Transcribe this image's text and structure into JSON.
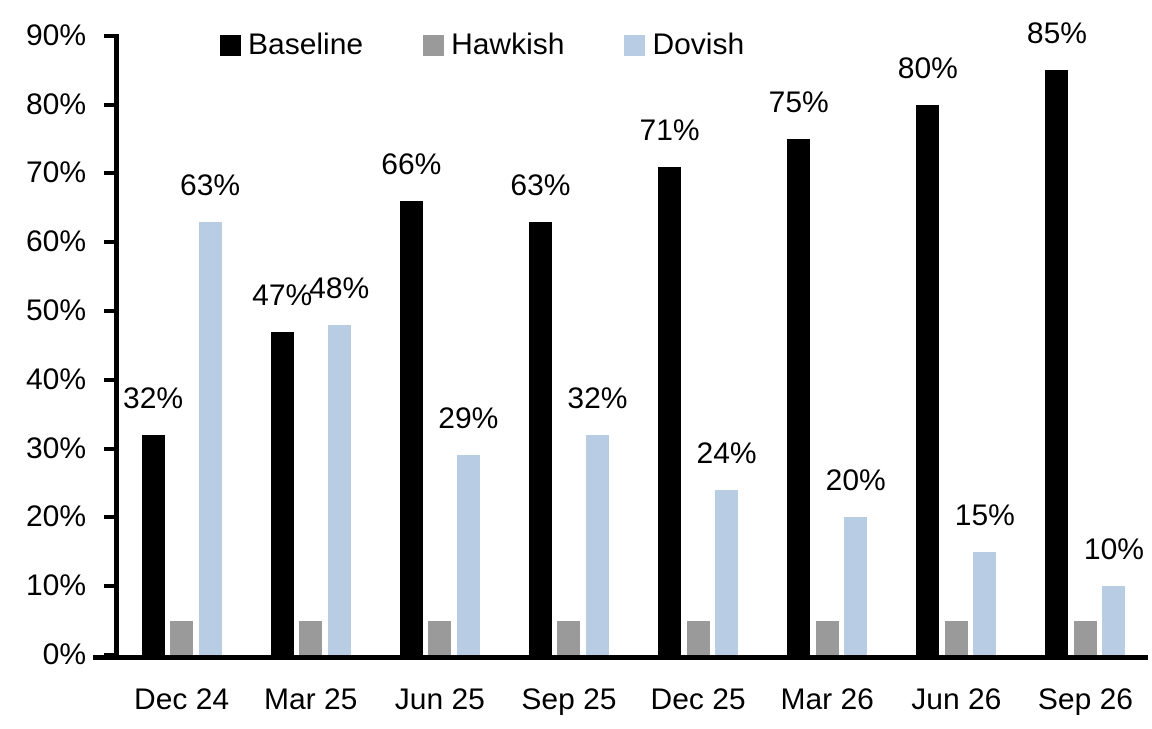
{
  "chart_data": {
    "type": "bar",
    "title": "",
    "categories": [
      "Dec 24",
      "Mar 25",
      "Jun 25",
      "Sep 25",
      "Dec 25",
      "Mar 26",
      "Jun 26",
      "Sep 26"
    ],
    "series": [
      {
        "name": "Baseline",
        "color": "#000000",
        "values": [
          32,
          47,
          66,
          63,
          71,
          75,
          80,
          85
        ],
        "data_labels": [
          "32%",
          "47%",
          "66%",
          "63%",
          "71%",
          "75%",
          "80%",
          "85%"
        ],
        "show_data_labels": true
      },
      {
        "name": "Hawkish",
        "color": "#9a9a9a",
        "values": [
          5,
          5,
          5,
          5,
          5,
          5,
          5,
          5
        ],
        "data_labels": null,
        "show_data_labels": false
      },
      {
        "name": "Dovish",
        "color": "#b8cce4",
        "values": [
          63,
          48,
          29,
          32,
          24,
          20,
          15,
          10
        ],
        "data_labels": [
          "63%",
          "48%",
          "29%",
          "32%",
          "24%",
          "20%",
          "15%",
          "10%"
        ],
        "show_data_labels": true
      }
    ],
    "y_axis": {
      "min": 0,
      "max": 90,
      "step": 10,
      "tick_labels": [
        "0%",
        "10%",
        "20%",
        "30%",
        "40%",
        "50%",
        "60%",
        "70%",
        "80%",
        "90%"
      ]
    },
    "x_axis": {
      "tick_labels": [
        "Dec 24",
        "Mar 25",
        "Jun 25",
        "Sep 25",
        "Dec 25",
        "Mar 26",
        "Jun 26",
        "Sep 26"
      ]
    },
    "legend": {
      "position": "top",
      "entries": [
        "Baseline",
        "Hawkish",
        "Dovish"
      ]
    },
    "grid": false,
    "background_color": "#ffffff",
    "axis_color": "#000000"
  }
}
